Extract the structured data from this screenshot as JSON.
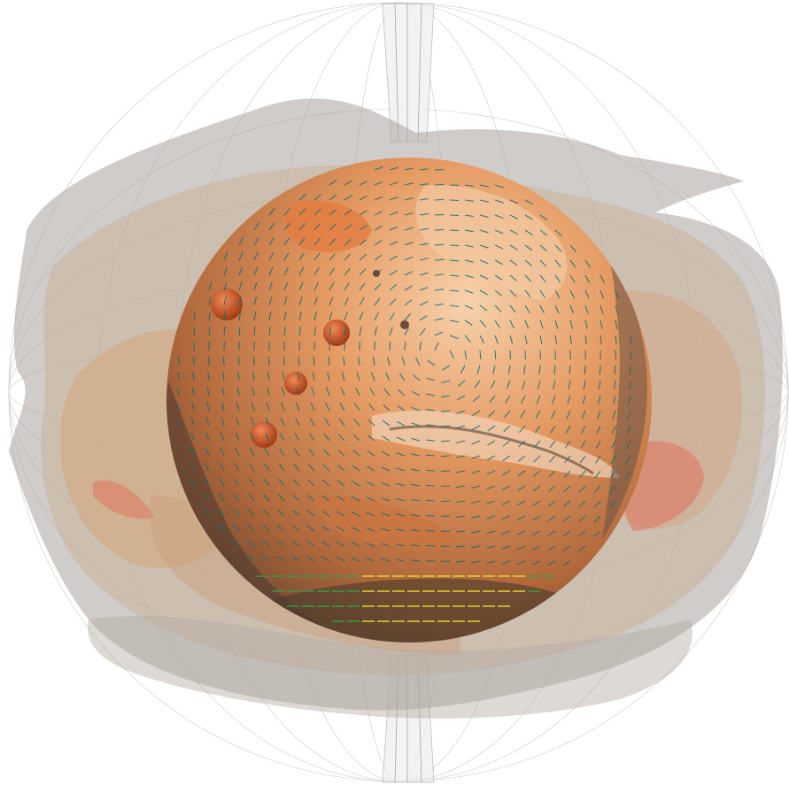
{
  "scene": {
    "subject": "planet",
    "colors": {
      "background": "#ffffff",
      "grid_line": "#b9b9b9",
      "planet_light": "#f4c79a",
      "planet_mid": "#d9844a",
      "planet_dark": "#6f4a34",
      "volcano": "#c24a1c",
      "cloud_gray": "#a9a39c",
      "cloud_tan": "#c9a983",
      "cloud_red": "#e06b55",
      "vector_teal": "#0f6e73",
      "vector_green": "#2aa64a",
      "vector_yellow": "#e8e32a"
    }
  }
}
